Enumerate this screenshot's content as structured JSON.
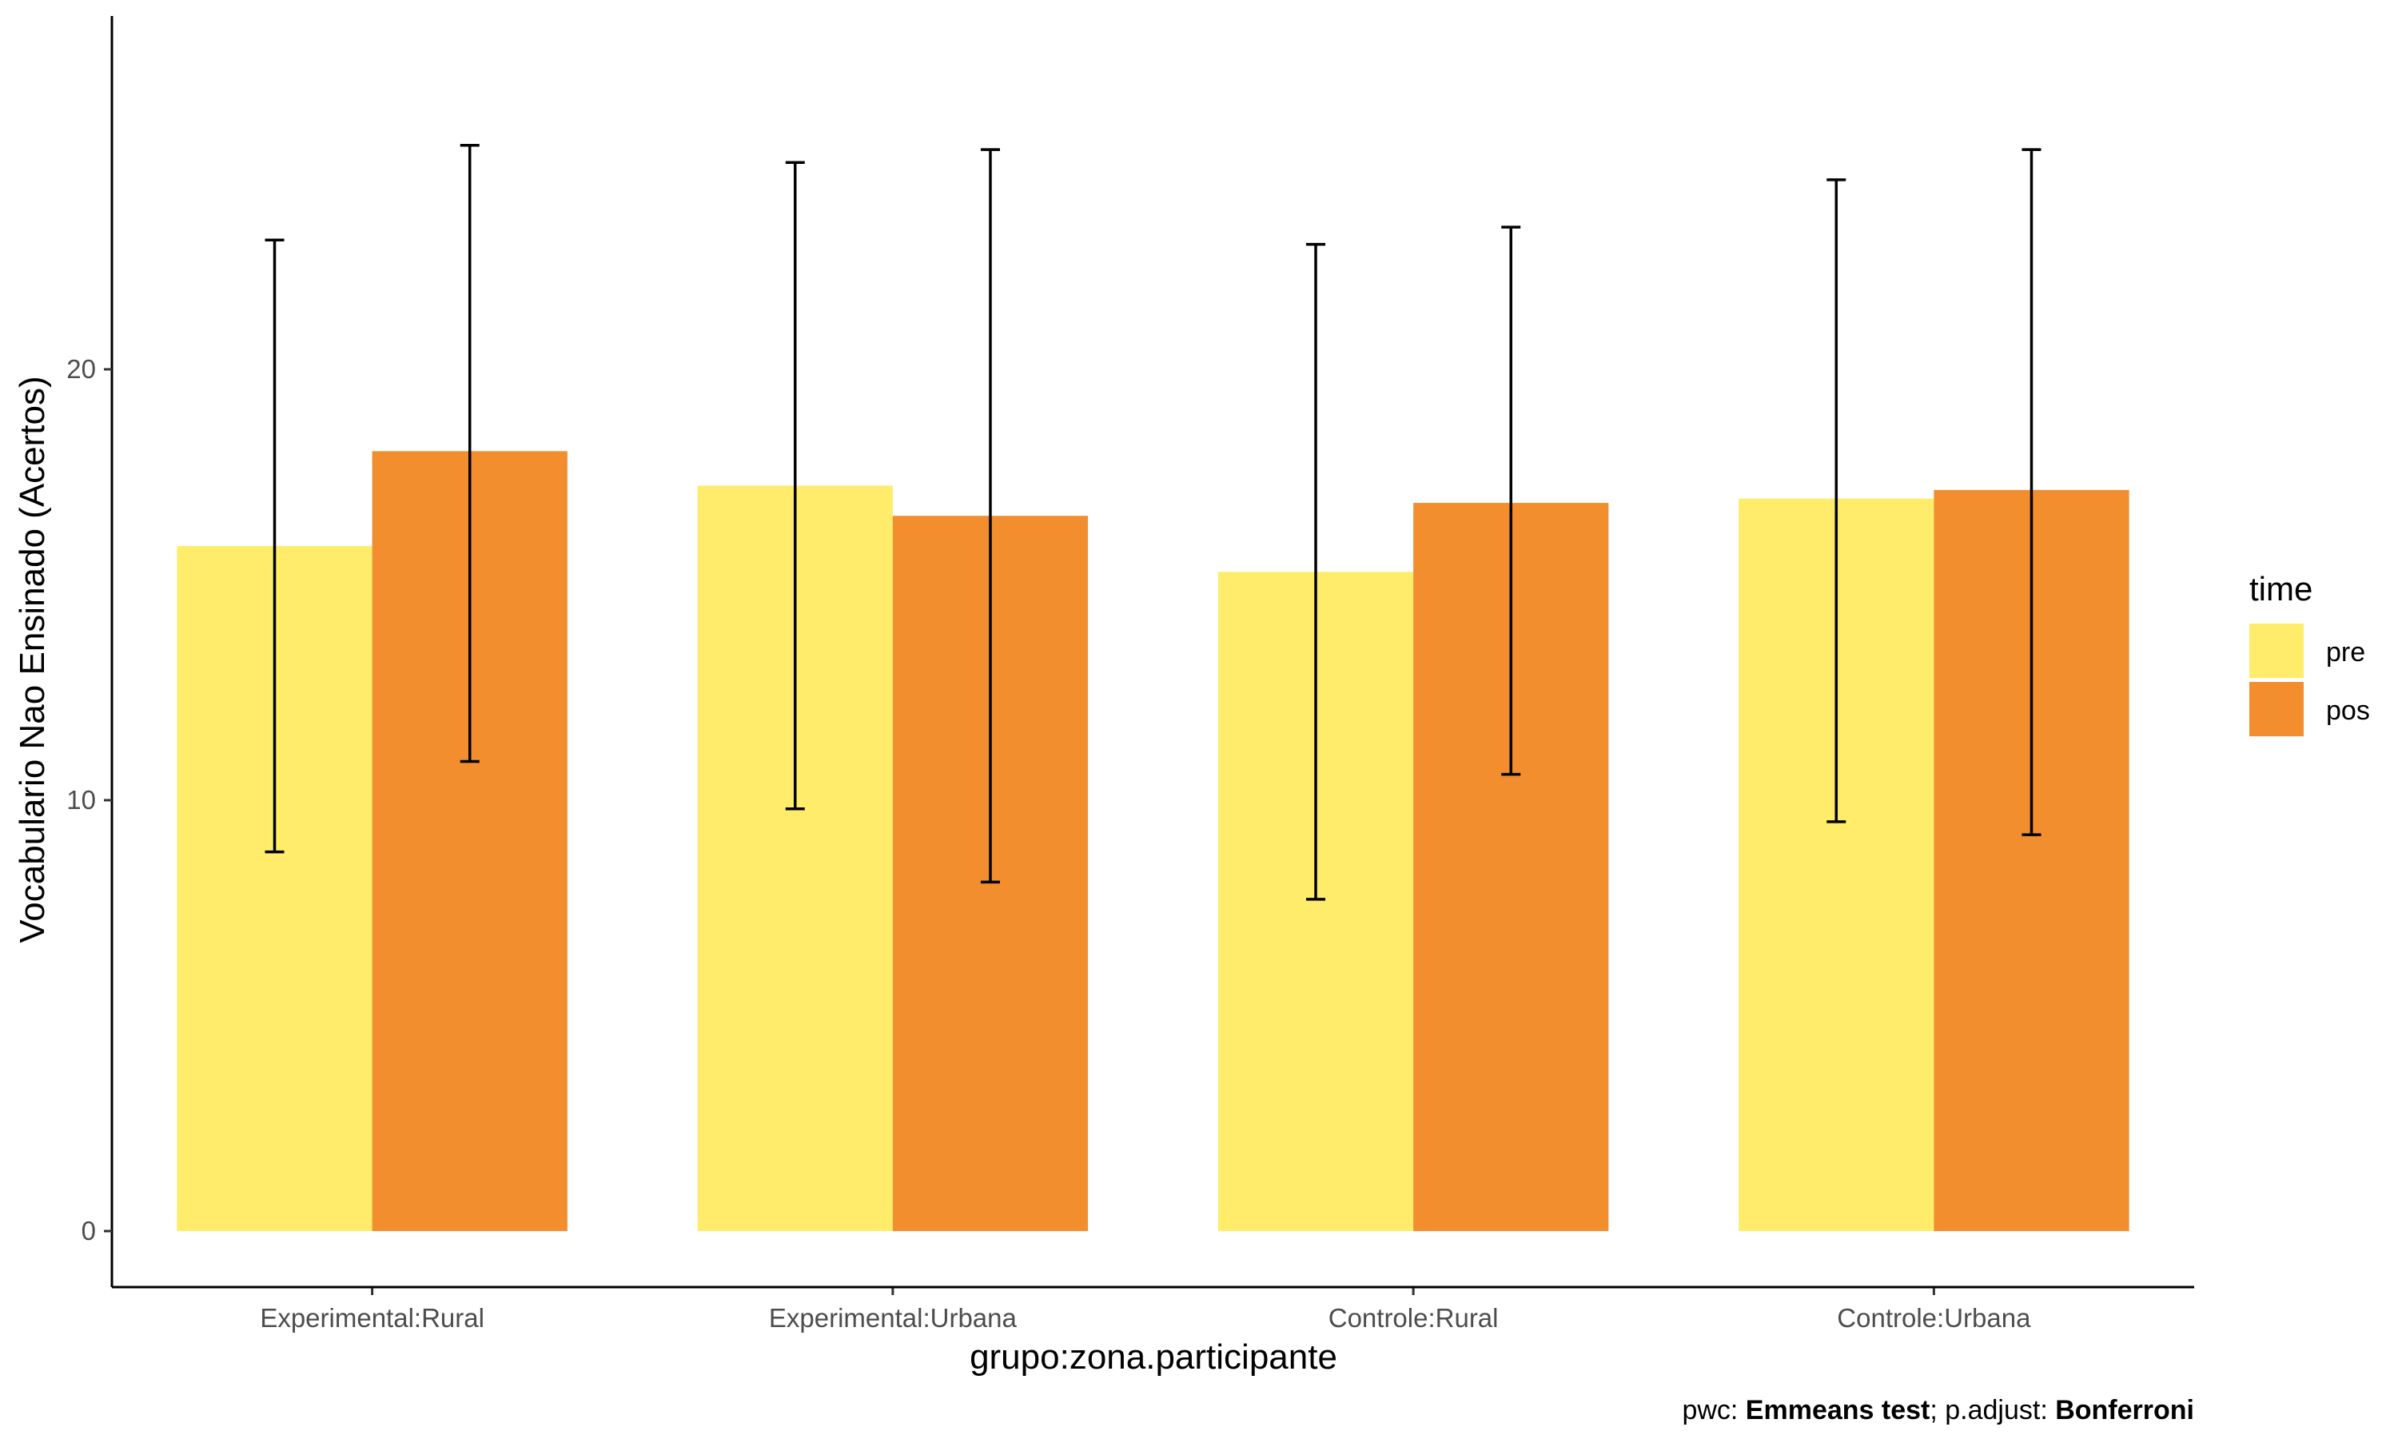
{
  "chart_data": {
    "type": "bar",
    "title": "",
    "xlabel": "grupo:zona.participante",
    "ylabel": "Vocabulario Nao Ensinado (Acertos)",
    "categories": [
      "Experimental:Rural",
      "Experimental:Urbana",
      "Controle:Rural",
      "Controle:Urbana"
    ],
    "y_ticks": [
      0,
      10,
      20
    ],
    "ylim": [
      -1.3,
      28.2
    ],
    "grid": false,
    "legend": {
      "title": "time",
      "position": "right"
    },
    "series": [
      {
        "name": "pre",
        "color": "#FEEC6A",
        "values": [
          15.9,
          17.3,
          15.3,
          17.0
        ],
        "error_low": [
          8.8,
          9.8,
          7.7,
          9.5
        ],
        "error_high": [
          23.0,
          24.8,
          22.9,
          24.4
        ]
      },
      {
        "name": "pos",
        "color": "#F28E2E",
        "values": [
          18.1,
          16.6,
          16.9,
          17.2
        ],
        "error_low": [
          10.9,
          8.1,
          10.6,
          9.2
        ],
        "error_high": [
          25.2,
          25.1,
          23.3,
          25.1
        ]
      }
    ],
    "caption": {
      "pwc_label": "pwc: ",
      "pwc_value": "Emmeans test",
      "sep": "; p.adjust: ",
      "adjust_value": "Bonferroni"
    }
  }
}
